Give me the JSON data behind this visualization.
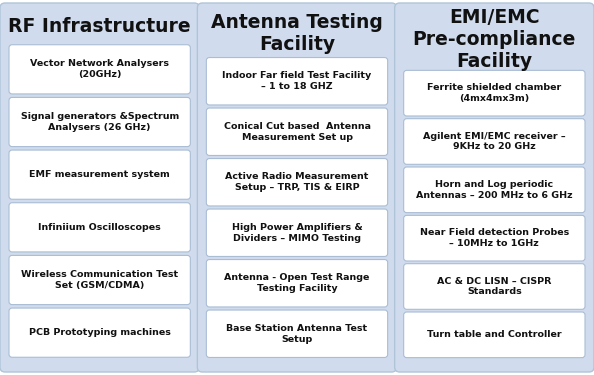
{
  "columns": [
    {
      "title": "RF Infrastructure",
      "title_lines": 1,
      "items": [
        "Vector Network Analysers\n(20GHz)",
        "Signal generators &Spectrum\nAnalysers (26 GHz)",
        "EMF measurement system",
        "Infiniium Oscilloscopes",
        "Wireless Communication Test\nSet (GSM/CDMA)",
        "PCB Prototyping machines"
      ]
    },
    {
      "title": "Antenna Testing\nFacility",
      "title_lines": 2,
      "items": [
        "Indoor Far field Test Facility\n– 1 to 18 GHZ",
        "Conical Cut based  Antenna\nMeasurement Set up",
        "Active Radio Measurement\nSetup – TRP, TIS & EIRP",
        "High Power Amplifiers &\nDividers – MIMO Testing",
        "Antenna - Open Test Range\nTesting Facility",
        "Base Station Antenna Test\nSetup"
      ]
    },
    {
      "title": "EMI/EMC\nPre-compliance\nFacility",
      "title_lines": 3,
      "items": [
        "Ferrite shielded chamber\n(4mx4mx3m)",
        "Agilent EMI/EMC receiver –\n9KHz to 20 GHz",
        "Horn and Log periodic\nAntennas – 200 MHz to 6 GHz",
        "Near Field detection Probes\n– 10MHz to 1GHz",
        "AC & DC LISN – CISPR\nStandards",
        "Turn table and Controller"
      ]
    }
  ],
  "panel_bg": "#d0dced",
  "box_bg": "#ffffff",
  "box_border": "#aabdd4",
  "title_color": "#111111",
  "item_color": "#111111",
  "fig_bg": "#ffffff",
  "outer_bg": "#e8eef5"
}
